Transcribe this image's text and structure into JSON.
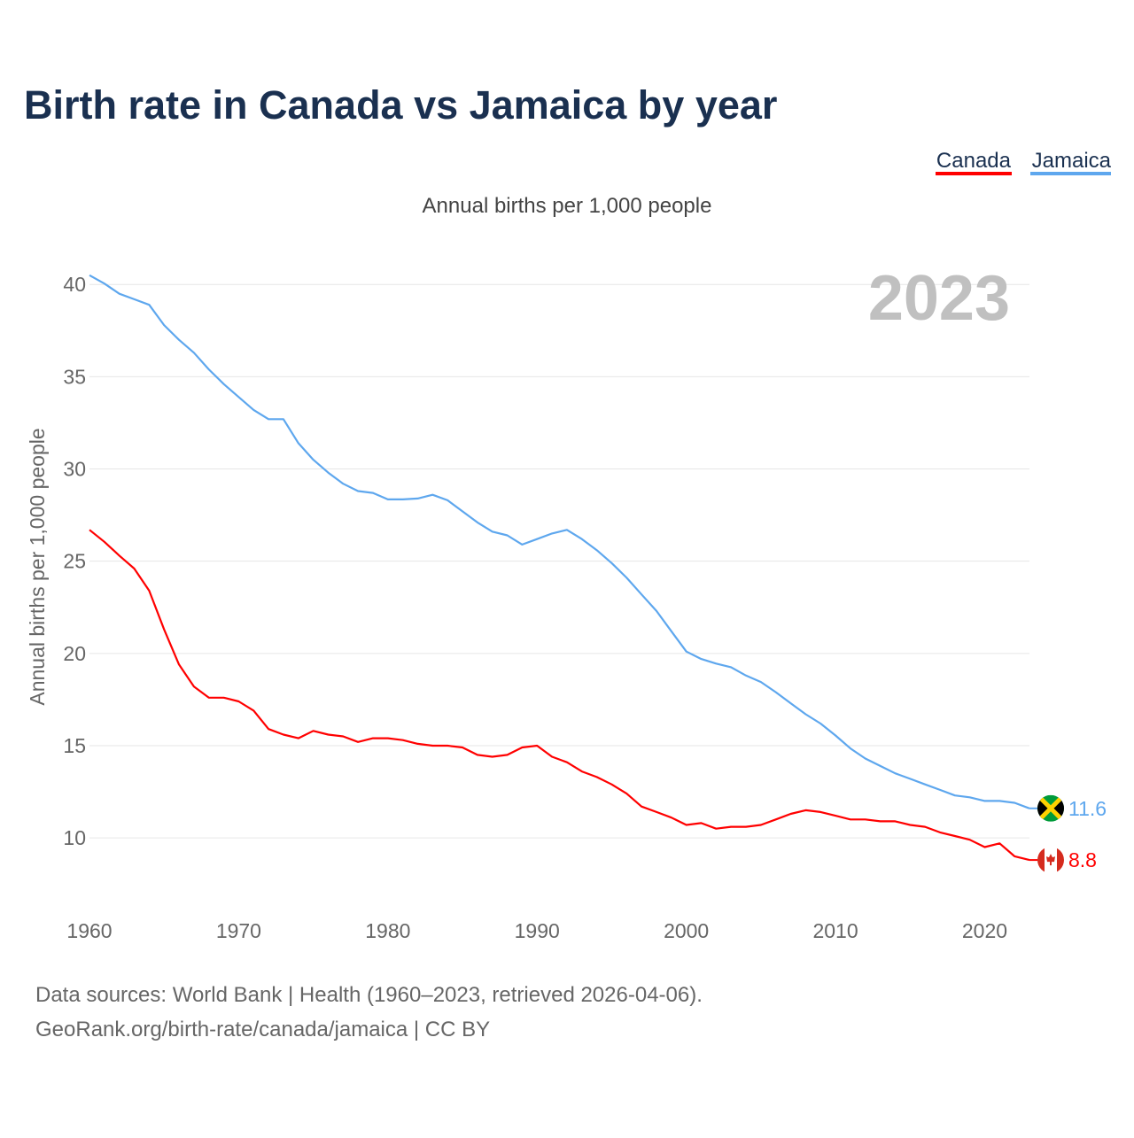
{
  "chart_data": {
    "type": "line",
    "title": "Birth rate in Canada vs Jamaica by year",
    "subtitle": "Annual births per 1,000 people",
    "ylabel": "Annual births per 1,000 people",
    "xlabel": "",
    "year_label": "2023",
    "xlim": [
      1960,
      2023
    ],
    "ylim": [
      6.5,
      41.5
    ],
    "grid": true,
    "legend_placement": "top-right",
    "x_ticks": [
      1960,
      1970,
      1980,
      1990,
      2000,
      2010,
      2020
    ],
    "y_ticks": [
      10,
      15,
      20,
      25,
      30,
      35,
      40
    ],
    "x": [
      1960,
      1961,
      1962,
      1963,
      1964,
      1965,
      1966,
      1967,
      1968,
      1969,
      1970,
      1971,
      1972,
      1973,
      1974,
      1975,
      1976,
      1977,
      1978,
      1979,
      1980,
      1981,
      1982,
      1983,
      1984,
      1985,
      1986,
      1987,
      1988,
      1989,
      1990,
      1991,
      1992,
      1993,
      1994,
      1995,
      1996,
      1997,
      1998,
      1999,
      2000,
      2001,
      2002,
      2003,
      2004,
      2005,
      2006,
      2007,
      2008,
      2009,
      2010,
      2011,
      2012,
      2013,
      2014,
      2015,
      2016,
      2017,
      2018,
      2019,
      2020,
      2021,
      2022,
      2023
    ],
    "series": [
      {
        "name": "Canada",
        "color": "#ff0000",
        "end_label": "8.8",
        "values": [
          26.7,
          26.05,
          25.3,
          24.6,
          23.4,
          21.3,
          19.4,
          18.2,
          17.6,
          17.6,
          17.4,
          16.9,
          15.9,
          15.6,
          15.4,
          15.8,
          15.6,
          15.5,
          15.2,
          15.4,
          15.4,
          15.3,
          15.1,
          15.0,
          15.0,
          14.9,
          14.5,
          14.4,
          14.5,
          14.9,
          15.0,
          14.4,
          14.1,
          13.6,
          13.3,
          12.9,
          12.4,
          11.7,
          11.4,
          11.1,
          10.7,
          10.8,
          10.5,
          10.6,
          10.6,
          10.7,
          11.0,
          11.3,
          11.5,
          11.4,
          11.2,
          11.0,
          11.0,
          10.9,
          10.9,
          10.7,
          10.6,
          10.3,
          10.1,
          9.9,
          9.5,
          9.7,
          9.0,
          8.8
        ]
      },
      {
        "name": "Jamaica",
        "color": "#5ea7ee",
        "end_label": "11.6",
        "values": [
          40.5,
          40.05,
          39.5,
          39.2,
          38.9,
          37.8,
          37.0,
          36.3,
          35.4,
          34.6,
          33.9,
          33.2,
          32.7,
          32.7,
          31.4,
          30.5,
          29.8,
          29.2,
          28.8,
          28.7,
          28.35,
          28.35,
          28.4,
          28.6,
          28.3,
          27.7,
          27.1,
          26.6,
          26.4,
          25.9,
          26.2,
          26.5,
          26.7,
          26.2,
          25.6,
          24.9,
          24.1,
          23.2,
          22.3,
          21.2,
          20.1,
          19.7,
          19.45,
          19.25,
          18.8,
          18.45,
          17.9,
          17.3,
          16.7,
          16.2,
          15.55,
          14.85,
          14.3,
          13.9,
          13.5,
          13.2,
          12.9,
          12.6,
          12.3,
          12.2,
          12.0,
          12.0,
          11.9,
          11.6
        ]
      }
    ],
    "source_line1": "Data sources: World Bank | Health (1960–2023, retrieved 2026-04-06).",
    "source_line2": "GeoRank.org/birth-rate/canada/jamaica | CC BY"
  },
  "colors": {
    "title": "#1a3050",
    "text": "#555555",
    "grid": "#e6e6e6",
    "year": "#c0c0c0"
  }
}
